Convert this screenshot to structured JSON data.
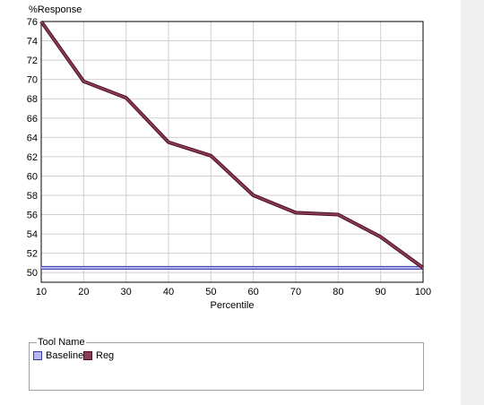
{
  "chart_data": {
    "type": "line",
    "ylabel": "%Response",
    "xlabel": "Percentile",
    "x": [
      10,
      20,
      30,
      40,
      50,
      60,
      70,
      80,
      90,
      100
    ],
    "xlim": [
      10,
      100
    ],
    "ylim": [
      49,
      76
    ],
    "y_ticks": [
      50,
      52,
      54,
      56,
      58,
      60,
      62,
      64,
      66,
      68,
      70,
      72,
      74,
      76
    ],
    "grid": true,
    "series": [
      {
        "name": "Baseline",
        "color": "#3a3aa0",
        "fill": "#b8b8f0",
        "values": [
          50.5,
          50.5,
          50.5,
          50.5,
          50.5,
          50.5,
          50.5,
          50.5,
          50.5,
          50.5
        ]
      },
      {
        "name": "Reg",
        "color": "#4a1020",
        "fill": "#8c3c56",
        "values": [
          76,
          69.8,
          68.1,
          63.5,
          62.1,
          58.0,
          56.2,
          56.0,
          53.7,
          50.5
        ]
      }
    ],
    "legend": {
      "title": "Tool Name",
      "placement": "bottom"
    }
  }
}
